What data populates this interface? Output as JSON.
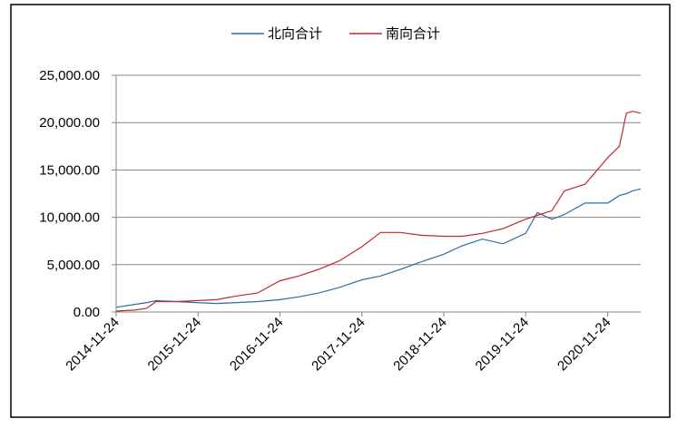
{
  "chart_data": {
    "type": "line",
    "x": [
      "2014-11-24",
      "2015-02-15",
      "2015-04-10",
      "2015-05-20",
      "2015-08-15",
      "2015-11-15",
      "2016-02-15",
      "2016-05-15",
      "2016-08-15",
      "2016-11-24",
      "2017-02-15",
      "2017-05-15",
      "2017-08-15",
      "2017-11-24",
      "2018-02-15",
      "2018-05-15",
      "2018-08-15",
      "2018-11-24",
      "2019-02-15",
      "2019-05-15",
      "2019-08-15",
      "2019-11-24",
      "2020-01-15",
      "2020-03-20",
      "2020-05-15",
      "2020-08-15",
      "2020-11-24",
      "2021-01-15",
      "2021-02-15",
      "2021-03-15",
      "2021-04-20"
    ],
    "series": [
      {
        "name": "北向合计",
        "color": "#2e6ca4",
        "values": [
          500,
          800,
          1000,
          1200,
          1100,
          1000,
          900,
          1000,
          1100,
          1300,
          1600,
          2000,
          2600,
          3400,
          3800,
          4500,
          5300,
          6100,
          7000,
          7700,
          7200,
          8300,
          10500,
          9800,
          10300,
          11500,
          11500,
          12300,
          12500,
          12800,
          13000
        ]
      },
      {
        "name": "南向合计",
        "color": "#c0282e",
        "values": [
          100,
          200,
          400,
          1100,
          1100,
          1200,
          1300,
          1700,
          2000,
          3300,
          3800,
          4500,
          5400,
          6900,
          8400,
          8400,
          8100,
          8000,
          8000,
          8300,
          8800,
          9800,
          10200,
          10700,
          12800,
          13500,
          16300,
          17500,
          21000,
          21200,
          21000
        ]
      }
    ],
    "xlim": [
      "2014-11-24",
      "2021-04-20"
    ],
    "xticks": [
      "2014-11-24",
      "2015-11-24",
      "2016-11-24",
      "2017-11-24",
      "2018-11-24",
      "2019-11-24",
      "2020-11-24"
    ],
    "ylim": [
      0,
      25000
    ],
    "yticks": [
      {
        "value": 0,
        "label": "0.00"
      },
      {
        "value": 5000,
        "label": "5,000.00"
      },
      {
        "value": 10000,
        "label": "10,000.00"
      },
      {
        "value": 15000,
        "label": "15,000.00"
      },
      {
        "value": 20000,
        "label": "20,000.00"
      },
      {
        "value": 25000,
        "label": "25,000.00"
      }
    ],
    "grid": true,
    "legend": "top"
  }
}
